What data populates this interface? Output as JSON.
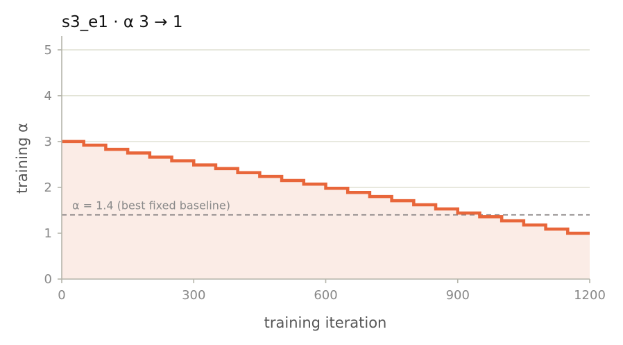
{
  "chart_data": {
    "type": "line",
    "title": "s3_e1   ·   α 3 → 1",
    "xlabel": "training iteration",
    "ylabel": "training α",
    "xlim": [
      0,
      1200
    ],
    "ylim": [
      0,
      5.3
    ],
    "xticks": [
      0,
      300,
      600,
      900,
      1200
    ],
    "yticks": [
      0,
      1,
      2,
      3,
      4,
      5
    ],
    "grid": "horizontal",
    "line_style": "step",
    "fill_under": true,
    "colors": {
      "line": "#e8663a",
      "fill": "#fbece6",
      "grid": "#e2e3d6",
      "axis": "#b4b4aa",
      "baseline": "#8a8585"
    },
    "series": [
      {
        "x": [
          0,
          50,
          100,
          150,
          200,
          250,
          300,
          350,
          400,
          450,
          500,
          550,
          600,
          650,
          700,
          750,
          800,
          850,
          900,
          950,
          1000,
          1050,
          1100,
          1150,
          1200
        ],
        "y": [
          3.0,
          2.92,
          2.83,
          2.75,
          2.66,
          2.58,
          2.49,
          2.41,
          2.32,
          2.24,
          2.15,
          2.07,
          1.98,
          1.89,
          1.8,
          1.71,
          1.62,
          1.53,
          1.44,
          1.36,
          1.27,
          1.18,
          1.09,
          1.0,
          1.0
        ]
      }
    ],
    "hline": {
      "y": 1.4,
      "style": "dashed",
      "label": "α = 1.4 (best fixed baseline)"
    }
  }
}
